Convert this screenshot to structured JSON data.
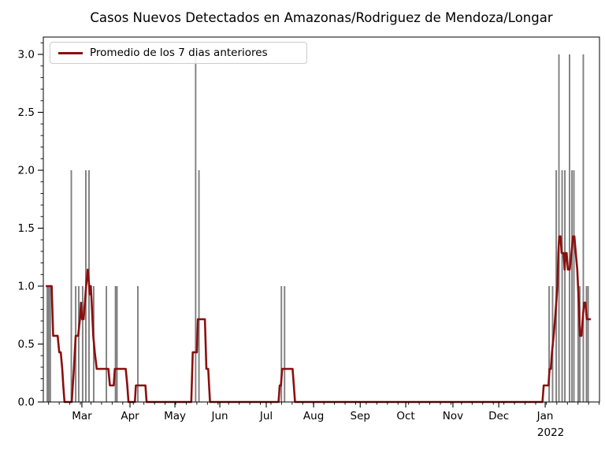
{
  "title": "Casos Nuevos Detectados en Amazonas/Rodriguez de Mendoza/Longar",
  "legend": {
    "label": "Promedio de los 7 dias anteriores"
  },
  "colors": {
    "bars": "#7f7f7f",
    "line": "#8b0f0f",
    "axis": "#000000",
    "background": "#ffffff",
    "legend_border": "#cccccc",
    "text": "#000000"
  },
  "chart_data": {
    "type": "bar+line",
    "title": "Casos Nuevos Detectados en Amazonas/Rodriguez de Mendoza/Longar",
    "x_unit": "days from left edge of axis (axis spans ~Feb 2021 to ~Feb 2022)",
    "x_range": [
      0,
      367.7
    ],
    "y_range": [
      0,
      3.15
    ],
    "grid": false,
    "legend_position": "upper-left",
    "x_major_ticks": [
      {
        "t": 25.5,
        "label": "Mar"
      },
      {
        "t": 57.3,
        "label": "Apr"
      },
      {
        "t": 87.0,
        "label": "May"
      },
      {
        "t": 116.7,
        "label": "Jun"
      },
      {
        "t": 147.4,
        "label": "Jul"
      },
      {
        "t": 178.7,
        "label": "Aug"
      },
      {
        "t": 209.5,
        "label": "Sep"
      },
      {
        "t": 239.6,
        "label": "Oct"
      },
      {
        "t": 270.8,
        "label": "Nov"
      },
      {
        "t": 301.1,
        "label": "Dec"
      },
      {
        "t": 331.8,
        "label": "Jan"
      }
    ],
    "x_year_label": {
      "t": 331.8,
      "label": "2022"
    },
    "x_minor_tick_interval": 7,
    "x_minor_tick_offset": 3.5,
    "y_ticks": [
      {
        "v": 0.0,
        "label": "0.0"
      },
      {
        "v": 0.5,
        "label": "0.5"
      },
      {
        "v": 1.0,
        "label": "1.0"
      },
      {
        "v": 1.5,
        "label": "1.5"
      },
      {
        "v": 2.0,
        "label": "2.0"
      },
      {
        "v": 2.5,
        "label": "2.5"
      },
      {
        "v": 3.0,
        "label": "3.0"
      }
    ],
    "y_minor_tick_interval": 0.1,
    "bars": {
      "name": "casos nuevos diarios",
      "points": [
        [
          2.6,
          1
        ],
        [
          3.6,
          1
        ],
        [
          4.6,
          1
        ],
        [
          18.5,
          2
        ],
        [
          21.4,
          1
        ],
        [
          23.4,
          1
        ],
        [
          26.0,
          1
        ],
        [
          28.1,
          2
        ],
        [
          30.2,
          2
        ],
        [
          33.3,
          1
        ],
        [
          41.7,
          1
        ],
        [
          47.7,
          1
        ],
        [
          48.7,
          1
        ],
        [
          62.5,
          1
        ],
        [
          100.7,
          3
        ],
        [
          102.9,
          2
        ],
        [
          157.4,
          1
        ],
        [
          159.5,
          1
        ],
        [
          334.4,
          1
        ],
        [
          336.7,
          1
        ],
        [
          339.1,
          2
        ],
        [
          340.9,
          3
        ],
        [
          343.0,
          2
        ],
        [
          344.8,
          2
        ],
        [
          347.9,
          3
        ],
        [
          349.5,
          2
        ],
        [
          350.8,
          2
        ],
        [
          353.6,
          1
        ],
        [
          354.7,
          1
        ],
        [
          357.0,
          3
        ],
        [
          359.1,
          1
        ],
        [
          360.2,
          1
        ]
      ]
    },
    "line": {
      "name": "Promedio de los 7 dias anteriores",
      "points": [
        [
          1.6,
          1.0
        ],
        [
          5.5,
          1.0
        ],
        [
          6.5,
          0.571
        ],
        [
          9.5,
          0.571
        ],
        [
          10.5,
          0.429
        ],
        [
          11.5,
          0.429
        ],
        [
          12.5,
          0.286
        ],
        [
          13.2,
          0.143
        ],
        [
          14,
          0
        ],
        [
          18.8,
          0
        ],
        [
          19.5,
          0.143
        ],
        [
          20.2,
          0.286
        ],
        [
          20.8,
          0.429
        ],
        [
          21.4,
          0.571
        ],
        [
          23,
          0.571
        ],
        [
          24.2,
          0.714
        ],
        [
          24.9,
          0.857
        ],
        [
          25.7,
          0.714
        ],
        [
          26.6,
          0.714
        ],
        [
          27.5,
          0.857
        ],
        [
          28.3,
          1.0
        ],
        [
          29.4,
          1.143
        ],
        [
          30.3,
          1.0
        ],
        [
          30.8,
          0.929
        ],
        [
          31.4,
          1.0
        ],
        [
          32,
          0.857
        ],
        [
          33,
          0.571
        ],
        [
          34,
          0.429
        ],
        [
          35.3,
          0.286
        ],
        [
          43,
          0.286
        ],
        [
          44,
          0.143
        ],
        [
          46.5,
          0.143
        ],
        [
          47.3,
          0.286
        ],
        [
          54.5,
          0.286
        ],
        [
          55.5,
          0.143
        ],
        [
          56.3,
          0
        ],
        [
          60.5,
          0
        ],
        [
          61.2,
          0.143
        ],
        [
          67.5,
          0.143
        ],
        [
          68.3,
          0
        ],
        [
          97.8,
          0
        ],
        [
          98.8,
          0.429
        ],
        [
          101.5,
          0.429
        ],
        [
          102.2,
          0.714
        ],
        [
          106.8,
          0.714
        ],
        [
          107.8,
          0.286
        ],
        [
          109,
          0.286
        ],
        [
          109.6,
          0.143
        ],
        [
          110.2,
          0
        ],
        [
          155.5,
          0
        ],
        [
          156.3,
          0.143
        ],
        [
          157.1,
          0.143
        ],
        [
          157.9,
          0.286
        ],
        [
          164.8,
          0.286
        ],
        [
          165.6,
          0.143
        ],
        [
          166.4,
          0
        ],
        [
          330,
          0
        ],
        [
          330.8,
          0.143
        ],
        [
          334,
          0.143
        ],
        [
          334.7,
          0.286
        ],
        [
          335.5,
          0.286
        ],
        [
          336.3,
          0.429
        ],
        [
          337.4,
          0.571
        ],
        [
          338.3,
          0.714
        ],
        [
          339.1,
          0.857
        ],
        [
          339.9,
          1.0
        ],
        [
          340.5,
          1.286
        ],
        [
          341.1,
          1.429
        ],
        [
          341.9,
          1.429
        ],
        [
          342.7,
          1.286
        ],
        [
          344,
          1.286
        ],
        [
          344.7,
          1.143
        ],
        [
          345.3,
          1.286
        ],
        [
          346,
          1.286
        ],
        [
          346.8,
          1.143
        ],
        [
          348,
          1.143
        ],
        [
          349.2,
          1.286
        ],
        [
          350.2,
          1.429
        ],
        [
          351.1,
          1.429
        ],
        [
          352,
          1.286
        ],
        [
          353,
          1.143
        ],
        [
          354,
          0.857
        ],
        [
          354.8,
          0.571
        ],
        [
          355.7,
          0.571
        ],
        [
          356.6,
          0.714
        ],
        [
          357.5,
          0.857
        ],
        [
          358.4,
          0.857
        ],
        [
          359.3,
          0.714
        ],
        [
          362,
          0.714
        ]
      ]
    }
  }
}
